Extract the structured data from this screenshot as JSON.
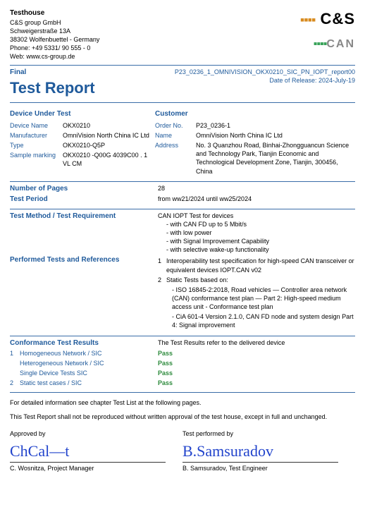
{
  "testhouse": {
    "name": "Testhouse",
    "company": "C&S group GmbH",
    "street": "Schweigerstraße 13A",
    "city": "38302 Wolfenbuettel - Germany",
    "phone": "Phone: +49 5331/ 90 555 - 0",
    "web": "Web: www.cs-group.de"
  },
  "logos": {
    "cs": "C&S",
    "can": "CAN"
  },
  "status": "Final",
  "title": "Test Report",
  "report_no": "P23_0236_1_OMNIVISION_OKX0210_SIC_PN_IOPT_report00",
  "release_date": "Date of Release: 2024-July-19",
  "dut": {
    "heading": "Device Under Test",
    "device_name_k": "Device Name",
    "device_name_v": "OKX0210",
    "manufacturer_k": "Manufacturer",
    "manufacturer_v": "OmniVision North China IC Ltd",
    "type_k": "Type",
    "type_v": "OKX0210-Q5P",
    "sample_k": "Sample marking",
    "sample_v": "OKX0210 -Q00G 4039C00 . 1 VL CM"
  },
  "customer": {
    "heading": "Customer",
    "order_k": "Order No.",
    "order_v": "P23_0236-1",
    "name_k": "Name",
    "name_v": "OmniVision North China IC Ltd",
    "addr_k": "Address",
    "addr_v": "No. 3 Quanzhou Road, Binhai-Zhongguancun Science and Technology Park, Tianjin Economic and Technological Development Zone, Tianjin, 300456, China"
  },
  "pages_k": "Number of Pages",
  "pages_v": "28",
  "period_k": "Test Period",
  "period_v": "from ww21/2024 until ww25/2024",
  "method_k": "Test Method / Test Requirement",
  "method_v": {
    "head": "CAN IOPT Test for devices",
    "d1": "- with CAN FD up to 5 Mbit/s",
    "d2": "- with low power",
    "d3": "- with Signal Improvement Capability",
    "d4": "- with selective wake-up functionality"
  },
  "performed_k": "Performed Tests and References",
  "performed": {
    "n1": "1",
    "t1": "Interoperability test specification for high-speed CAN transceiver or equivalent devices IOPT.CAN v02",
    "n2": "2",
    "t2": "Static Tests based on:",
    "t2a": "- ISO 16845-2:2018, Road vehicles — Controller area network (CAN) conformance test plan — Part 2: High-speed medium access unit - Conformance test plan",
    "t2b": "- CiA 601-4 Version 2.1.0, CAN FD node and system design Part 4: Signal improvement"
  },
  "results_k": "Conformance Test Results",
  "results_note": "The Test Results refer to the delivered device",
  "results": {
    "n1": "1",
    "l1": "Homogeneous Network / SIC",
    "p1": "Pass",
    "l2": "Heterogeneous Network / SIC",
    "p2": "Pass",
    "l3": "Single Device Tests SIC",
    "p3": "Pass",
    "n4": "2",
    "l4": "Static test cases / SIC",
    "p4": "Pass"
  },
  "foot1": "For detailed information see chapter Test List at the following pages.",
  "foot2": "This Test Report shall not be reproduced without written approval of the test house, except in full and unchanged.",
  "sig": {
    "approved_k": "Approved by",
    "approved_sig": "ChCal—t",
    "approved_name": "C. Wosnitza, Project Manager",
    "performed_k": "Test performed by",
    "performed_sig": "B.Samsuradov",
    "performed_name": "B. Samsuradov, Test Engineer"
  },
  "colors": {
    "blue": "#1f5a9b",
    "pass": "#2e8b3d"
  }
}
